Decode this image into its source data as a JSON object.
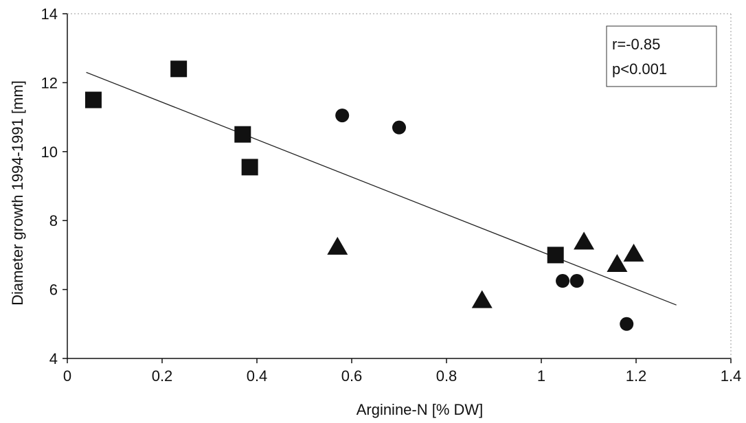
{
  "chart_data": {
    "type": "scatter",
    "title": "",
    "xlabel": "Arginine-N [% DW]",
    "ylabel": "Diameter growth 1994-1991 [mm]",
    "xlim": [
      0,
      1.4
    ],
    "ylim": [
      4,
      14
    ],
    "xticks": [
      0,
      0.2,
      0.4,
      0.6,
      0.8,
      1,
      1.2,
      1.4
    ],
    "yticks": [
      4,
      6,
      8,
      10,
      12,
      14
    ],
    "xtick_labels": [
      "0",
      "0.2",
      "0.4",
      "0.6",
      "0.8",
      "1",
      "1.2",
      "1.4"
    ],
    "ytick_labels": [
      "4",
      "6",
      "8",
      "10",
      "12",
      "14"
    ],
    "grid": false,
    "series": [
      {
        "marker": "square",
        "color": "#111111",
        "points": [
          {
            "x": 0.055,
            "y": 11.5
          },
          {
            "x": 0.235,
            "y": 12.4
          },
          {
            "x": 0.37,
            "y": 10.5
          },
          {
            "x": 0.385,
            "y": 9.55
          },
          {
            "x": 1.03,
            "y": 7.0
          }
        ]
      },
      {
        "marker": "circle",
        "color": "#111111",
        "points": [
          {
            "x": 0.58,
            "y": 11.05
          },
          {
            "x": 0.7,
            "y": 10.7
          },
          {
            "x": 1.045,
            "y": 6.25
          },
          {
            "x": 1.075,
            "y": 6.25
          },
          {
            "x": 1.18,
            "y": 5.0
          }
        ]
      },
      {
        "marker": "triangle",
        "color": "#111111",
        "points": [
          {
            "x": 0.57,
            "y": 7.25
          },
          {
            "x": 0.875,
            "y": 5.7
          },
          {
            "x": 1.09,
            "y": 7.4
          },
          {
            "x": 1.16,
            "y": 6.75
          },
          {
            "x": 1.195,
            "y": 7.05
          }
        ]
      }
    ],
    "regression_line": {
      "x1": 0.04,
      "y1": 12.3,
      "x2": 1.285,
      "y2": 5.55
    },
    "annotation": {
      "lines": [
        "r=-0.85",
        "p<0.001"
      ],
      "placement": "top-right"
    }
  }
}
